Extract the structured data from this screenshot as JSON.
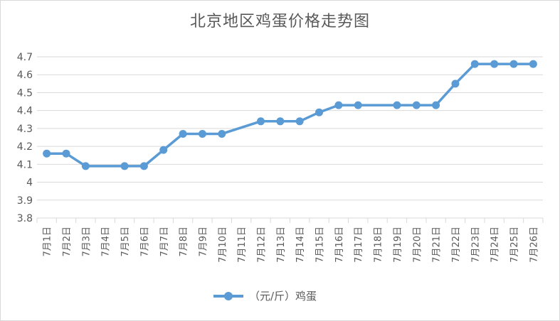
{
  "chart_data": {
    "type": "line",
    "title": "北京地区鸡蛋价格走势图",
    "xlabel": "",
    "ylabel": "",
    "categories": [
      "7月1日",
      "7月2日",
      "7月3日",
      "7月4日",
      "7月5日",
      "7月6日",
      "7月7日",
      "7月8日",
      "7月9日",
      "7月10日",
      "7月11日",
      "7月12日",
      "7月13日",
      "7月14日",
      "7月15日",
      "7月16日",
      "7月17日",
      "7月18日",
      "7月19日",
      "7月20日",
      "7月21日",
      "7月22日",
      "7月23日",
      "7月24日",
      "7月25日",
      "7月26日"
    ],
    "ylim": [
      3.8,
      4.7
    ],
    "yticks": [
      "3.8",
      "3.9",
      "4",
      "4.1",
      "4.2",
      "4.3",
      "4.4",
      "4.5",
      "4.6",
      "4.7"
    ],
    "grid": true,
    "legend_position": "bottom",
    "series": [
      {
        "name": "（元/斤）鸡蛋",
        "color": "#5b9bd5",
        "points": [
          {
            "x": "7月1日",
            "y": 4.16
          },
          {
            "x": "7月2日",
            "y": 4.16
          },
          {
            "x": "7月3日",
            "y": 4.09
          },
          {
            "x": "7月5日",
            "y": 4.09
          },
          {
            "x": "7月6日",
            "y": 4.09
          },
          {
            "x": "7月7日",
            "y": 4.18
          },
          {
            "x": "7月8日",
            "y": 4.27
          },
          {
            "x": "7月9日",
            "y": 4.27
          },
          {
            "x": "7月10日",
            "y": 4.27
          },
          {
            "x": "7月12日",
            "y": 4.34
          },
          {
            "x": "7月13日",
            "y": 4.34
          },
          {
            "x": "7月14日",
            "y": 4.34
          },
          {
            "x": "7月15日",
            "y": 4.39
          },
          {
            "x": "7月16日",
            "y": 4.43
          },
          {
            "x": "7月17日",
            "y": 4.43
          },
          {
            "x": "7月19日",
            "y": 4.43
          },
          {
            "x": "7月20日",
            "y": 4.43
          },
          {
            "x": "7月21日",
            "y": 4.43
          },
          {
            "x": "7月22日",
            "y": 4.55
          },
          {
            "x": "7月23日",
            "y": 4.66
          },
          {
            "x": "7月24日",
            "y": 4.66
          },
          {
            "x": "7月25日",
            "y": 4.66
          },
          {
            "x": "7月26日",
            "y": 4.66
          }
        ]
      }
    ]
  }
}
